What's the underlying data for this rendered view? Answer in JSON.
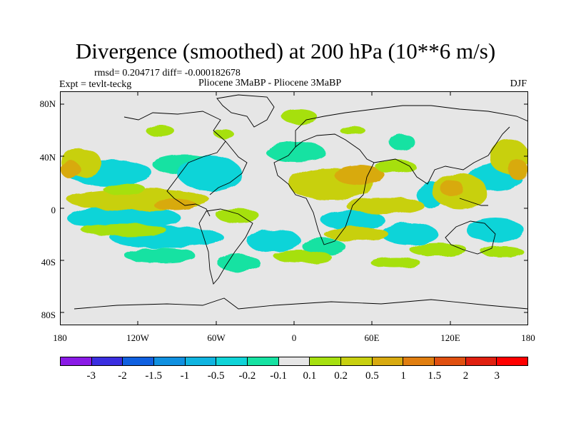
{
  "title": "Divergence (smoothed) at 200 hPa (10**6 m/s)",
  "stats": "rmsd= 0.204717 diff= -0.000182678",
  "expt": "Expt = tevlt-teckg",
  "experiment_name": "Pliocene   3MaBP - Pliocene   3MaBP",
  "season": "DJF",
  "y_axis_labels": [
    "80N",
    "40N",
    "0",
    "40S",
    "80S"
  ],
  "x_axis_labels": [
    "180",
    "120W",
    "60W",
    "0",
    "60E",
    "120E",
    "180"
  ],
  "colorbar": {
    "labels": [
      "-3",
      "-2",
      "-1.5",
      "-1",
      "-0.5",
      "-0.2",
      "-0.1",
      "0.1",
      "0.2",
      "0.5",
      "1",
      "1.5",
      "2",
      "3"
    ],
    "colors": [
      "#8a1ae6",
      "#3a2ee0",
      "#1060e0",
      "#1090e0",
      "#10b4e0",
      "#10d4d8",
      "#16e2a2",
      "#e6e6e6",
      "#a6e010",
      "#c8d010",
      "#d8aa10",
      "#e07e10",
      "#e05010",
      "#e02010",
      "#ff0000"
    ]
  },
  "colors": {
    "background_field": "#e6e6e6",
    "coast": "#000000"
  }
}
